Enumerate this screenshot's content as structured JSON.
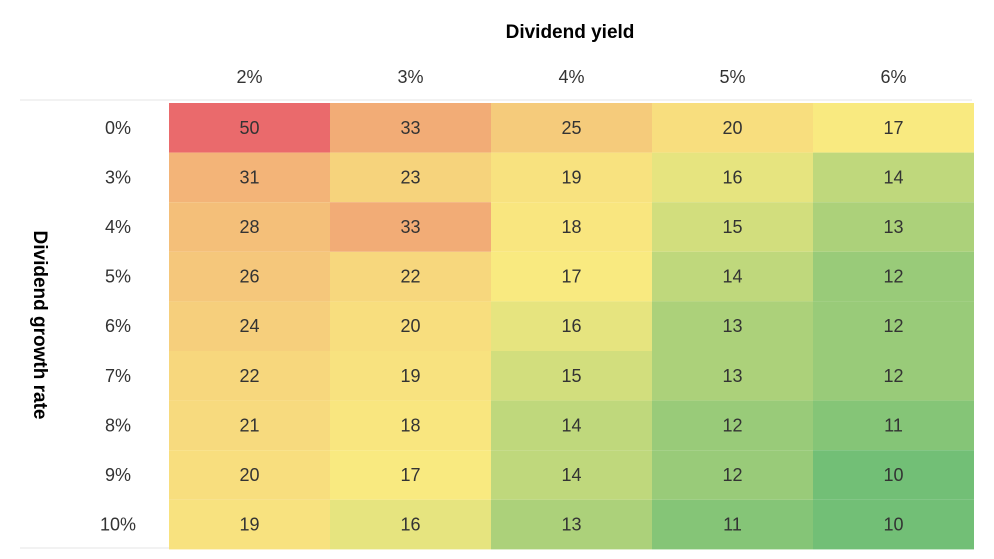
{
  "chart_data": {
    "type": "heatmap",
    "title": "",
    "xlabel": "Dividend yield",
    "ylabel": "Dividend growth rate",
    "x": [
      "2%",
      "3%",
      "4%",
      "5%",
      "6%"
    ],
    "y": [
      "0%",
      "3%",
      "4%",
      "5%",
      "6%",
      "7%",
      "8%",
      "9%",
      "10%"
    ],
    "values": [
      [
        50,
        33,
        25,
        20,
        17
      ],
      [
        31,
        23,
        19,
        16,
        14
      ],
      [
        28,
        33,
        18,
        15,
        13
      ],
      [
        26,
        22,
        17,
        14,
        12
      ],
      [
        24,
        20,
        16,
        13,
        12
      ],
      [
        22,
        19,
        15,
        13,
        12
      ],
      [
        21,
        18,
        14,
        12,
        11
      ],
      [
        20,
        17,
        14,
        12,
        10
      ],
      [
        19,
        16,
        13,
        11,
        10
      ]
    ],
    "color_scale": {
      "low": "#72bf76",
      "mid": "#f9ea80",
      "high": "#ea6a6c"
    },
    "legend": "none",
    "grid": false
  }
}
